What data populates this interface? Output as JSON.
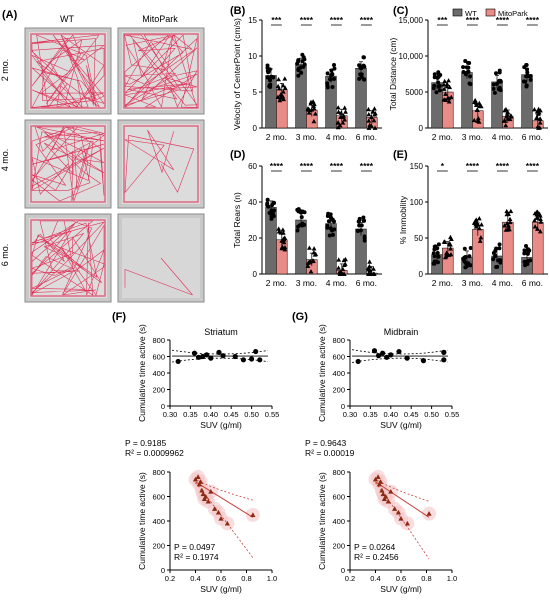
{
  "panels": {
    "A": "(A)",
    "B": "(B)",
    "C": "(C)",
    "D": "(D)",
    "E": "(E)",
    "F": "(F)",
    "G": "(G)"
  },
  "colors": {
    "wt": "#6b6b6b",
    "mito": "#e98b86",
    "mito_marker": "#8b2b12",
    "mito_line": "#c8403a",
    "mito_band": "#f4c6c8",
    "track": "#e0204a"
  },
  "panelA": {
    "col_labels": [
      "WT",
      "MitoPark"
    ],
    "row_labels": [
      "2 mo.",
      "4 mo.",
      "6 mo."
    ]
  },
  "legend": {
    "wt": "WT",
    "mito": "MitoPark"
  },
  "chart_data": [
    {
      "id": "B",
      "type": "bar",
      "categories": [
        "2 mo.",
        "3 mo.",
        "4 mo.",
        "6 mo."
      ],
      "series": [
        {
          "name": "WT",
          "values": [
            7.3,
            8.8,
            7.2,
            8.3
          ]
        },
        {
          "name": "MitoPark",
          "values": [
            5.3,
            2.5,
            1.7,
            1.5
          ]
        }
      ],
      "significance": [
        "***",
        "****",
        "****",
        "****"
      ],
      "ylabel": "Velocity of CenterPoint (cm/s)",
      "ylim": [
        0,
        15
      ],
      "yticks": [
        0,
        5,
        10,
        15
      ],
      "yticklabels": [
        "0",
        "5",
        "10",
        "15"
      ]
    },
    {
      "id": "C",
      "type": "bar",
      "categories": [
        "2 mo.",
        "3 mo.",
        "4 mo.",
        "6 mo."
      ],
      "series": [
        {
          "name": "WT",
          "values": [
            6300,
            7700,
            6400,
            7400
          ]
        },
        {
          "name": "MitoPark",
          "values": [
            5000,
            2400,
            1600,
            1000
          ]
        }
      ],
      "significance": [
        "***",
        "****",
        "****",
        "****"
      ],
      "ylabel": "Total Distance (cm)",
      "ylim": [
        0,
        15000
      ],
      "yticks": [
        0,
        5000,
        10000,
        15000
      ],
      "yticklabels": [
        "0",
        "5000",
        "10,000",
        "15,000"
      ]
    },
    {
      "id": "D",
      "type": "bar",
      "categories": [
        "2 mo.",
        "3 mo.",
        "4 mo.",
        "6 mo."
      ],
      "series": [
        {
          "name": "WT",
          "values": [
            37,
            30,
            28,
            25
          ]
        },
        {
          "name": "MitoPark",
          "values": [
            19,
            8,
            2,
            0.5
          ]
        }
      ],
      "significance": [
        "****",
        "****",
        "****",
        "****"
      ],
      "ylabel": "Total Rears (n)",
      "ylim": [
        0,
        60
      ],
      "yticks": [
        0,
        20,
        40,
        60
      ],
      "yticklabels": [
        "0",
        "20",
        "40",
        "60"
      ]
    },
    {
      "id": "E",
      "type": "bar",
      "categories": [
        "2 mo.",
        "3 mo.",
        "4 mo.",
        "6 mo."
      ],
      "series": [
        {
          "name": "WT",
          "values": [
            27,
            23,
            25,
            23
          ]
        },
        {
          "name": "MitoPark",
          "values": [
            36,
            62,
            72,
            72
          ]
        }
      ],
      "significance": [
        "*",
        "****",
        "****",
        "****"
      ],
      "ylabel": "% Immobility",
      "ylim": [
        0,
        150
      ],
      "yticks": [
        0,
        50,
        100,
        150
      ],
      "yticklabels": [
        "0",
        "50",
        "100",
        "150"
      ]
    },
    {
      "id": "F-top",
      "type": "scatter",
      "title": "Striatum",
      "x": [
        0.32,
        0.36,
        0.37,
        0.38,
        0.39,
        0.4,
        0.42,
        0.43,
        0.46,
        0.48,
        0.5,
        0.51,
        0.52
      ],
      "y": [
        540,
        640,
        590,
        600,
        620,
        580,
        650,
        610,
        600,
        560,
        570,
        660,
        560
      ],
      "fit": {
        "slope": 0,
        "intercept": 605,
        "ci_halfwidth_min": 25,
        "ci_halfwidth_max": 70
      },
      "stats": [
        "P = 0.9185",
        "R² = 0.0009962"
      ],
      "xlabel": "SUV (g/ml)",
      "ylabel": "Cumulative time active (s)",
      "xlim": [
        0.3,
        0.55
      ],
      "xticks": [
        0.3,
        0.35,
        0.4,
        0.45,
        0.5,
        0.55
      ],
      "xticklabels": [
        "0.30",
        "0.35",
        "0.40",
        "0.45",
        "0.50",
        "0.55"
      ],
      "ylim": [
        0,
        800
      ],
      "yticks": [
        0,
        200,
        400,
        600,
        800
      ],
      "yticklabels": [
        "0",
        "200",
        "400",
        "600",
        "800"
      ]
    },
    {
      "id": "G-top",
      "type": "scatter",
      "title": "Midbrain",
      "x": [
        0.32,
        0.36,
        0.37,
        0.38,
        0.39,
        0.4,
        0.42,
        0.44,
        0.48,
        0.53,
        0.53
      ],
      "y": [
        540,
        670,
        610,
        640,
        590,
        620,
        660,
        580,
        550,
        650,
        560
      ],
      "fit": {
        "slope": 0,
        "intercept": 605,
        "ci_halfwidth_min": 25,
        "ci_halfwidth_max": 75
      },
      "stats": [
        "P = 0.9643",
        "R² = 0.00019"
      ],
      "xlabel": "SUV (g/ml)",
      "ylabel": "Cumulative time active (s)",
      "xlim": [
        0.3,
        0.55
      ],
      "xticks": [
        0.3,
        0.35,
        0.4,
        0.45,
        0.5,
        0.55
      ],
      "xticklabels": [
        "0.30",
        "0.35",
        "0.40",
        "0.45",
        "0.50",
        "0.55"
      ],
      "ylim": [
        0,
        800
      ],
      "yticks": [
        0,
        200,
        400,
        600,
        800
      ],
      "yticklabels": [
        "0",
        "200",
        "400",
        "600",
        "800"
      ]
    },
    {
      "id": "F-bottom",
      "type": "scatter",
      "x": [
        0.4,
        0.42,
        0.43,
        0.44,
        0.45,
        0.46,
        0.47,
        0.48,
        0.5,
        0.52,
        0.55,
        0.58,
        0.6,
        0.65,
        0.85
      ],
      "y": [
        740,
        760,
        700,
        720,
        650,
        620,
        580,
        600,
        560,
        640,
        500,
        470,
        420,
        380,
        450
      ],
      "fit": {
        "x0": 0.4,
        "y0": 720,
        "x1": 0.85,
        "y1": 430,
        "upper1": 570,
        "lower1": 100
      },
      "stats": [
        "P = 0.0497",
        "R² = 0.1974"
      ],
      "xlabel": "SUV (g/ml)",
      "ylabel": "Cumulative time active (s)",
      "xlim": [
        0.2,
        1.0
      ],
      "xticks": [
        0.2,
        0.4,
        0.6,
        0.8,
        1.0
      ],
      "xticklabels": [
        "0.2",
        "0.4",
        "0.6",
        "0.8",
        "1.0"
      ],
      "ylim": [
        0,
        800
      ],
      "yticks": [
        0,
        200,
        400,
        600,
        800
      ],
      "yticklabels": [
        "0",
        "200",
        "400",
        "600",
        "800"
      ]
    },
    {
      "id": "G-bottom",
      "type": "scatter",
      "x": [
        0.4,
        0.42,
        0.43,
        0.44,
        0.45,
        0.46,
        0.47,
        0.48,
        0.5,
        0.52,
        0.55,
        0.58,
        0.6,
        0.65,
        0.82
      ],
      "y": [
        740,
        760,
        700,
        720,
        650,
        620,
        580,
        600,
        560,
        640,
        500,
        470,
        420,
        380,
        460
      ],
      "fit": {
        "x0": 0.4,
        "y0": 720,
        "x1": 0.82,
        "y1": 430,
        "upper1": 560,
        "lower1": 90
      },
      "stats": [
        "P = 0.0264",
        "R² = 0.2456"
      ],
      "xlabel": "SUV (g/ml)",
      "ylabel": "Cumulative time active (s)",
      "xlim": [
        0.2,
        1.0
      ],
      "xticks": [
        0.2,
        0.4,
        0.6,
        0.8,
        1.0
      ],
      "xticklabels": [
        "0.2",
        "0.4",
        "0.6",
        "0.8",
        "1.0"
      ],
      "ylim": [
        0,
        800
      ],
      "yticks": [
        0,
        200,
        400,
        600,
        800
      ],
      "yticklabels": [
        "0",
        "200",
        "400",
        "600",
        "800"
      ]
    }
  ]
}
